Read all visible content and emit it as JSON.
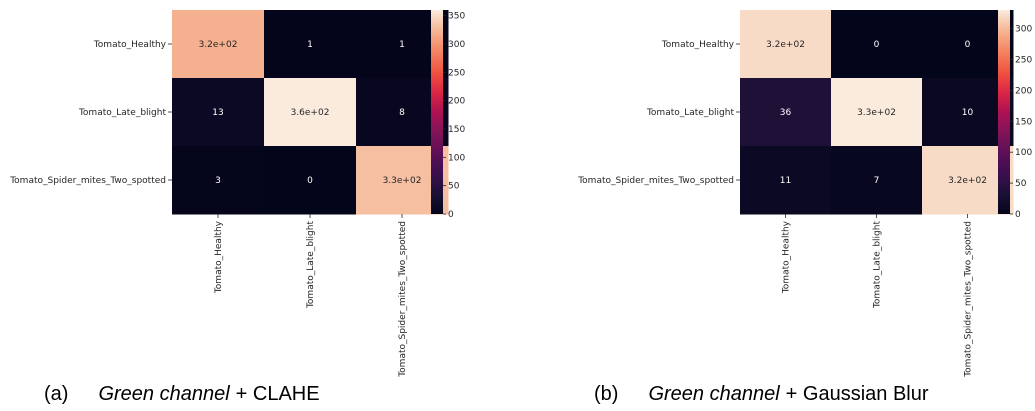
{
  "chart_data": [
    {
      "type": "heatmap",
      "caption": {
        "prefix": "(a)",
        "italic": "Green channel",
        "suffix": "+ CLAHE"
      },
      "x_labels": [
        "Tomato_Healthy",
        "Tomato_Late_blight",
        "Tomato_Spider_mites_Two_spotted"
      ],
      "y_labels": [
        "Tomato_Healthy",
        "Tomato_Late_blight",
        "Tomato_Spider_mites_Two_spotted"
      ],
      "values": [
        [
          320,
          1,
          1
        ],
        [
          13,
          360,
          8
        ],
        [
          3,
          0,
          330
        ]
      ],
      "annotations": [
        [
          "3.2e+02",
          "1",
          "1"
        ],
        [
          "13",
          "3.6e+02",
          "8"
        ],
        [
          "3",
          "0",
          "3.3e+02"
        ]
      ],
      "colorbar": {
        "min": 0,
        "max": 360,
        "ticks": [
          0,
          50,
          100,
          150,
          200,
          250,
          300,
          350
        ]
      }
    },
    {
      "type": "heatmap",
      "caption": {
        "prefix": "(b)",
        "italic": "Green channel",
        "suffix": "+ Gaussian Blur"
      },
      "x_labels": [
        "Tomato_Healthy",
        "Tomato_Late_blight",
        "Tomato_Spider_mites_Two_spotted"
      ],
      "y_labels": [
        "Tomato_Healthy",
        "Tomato_Late_blight",
        "Tomato_Spider_mites_Two_spotted"
      ],
      "values": [
        [
          320,
          0,
          0
        ],
        [
          36,
          330,
          10
        ],
        [
          11,
          7,
          320
        ]
      ],
      "annotations": [
        [
          "3.2e+02",
          "0",
          "0"
        ],
        [
          "36",
          "3.3e+02",
          "10"
        ],
        [
          "11",
          "7",
          "3.2e+02"
        ]
      ],
      "colorbar": {
        "min": 0,
        "max": 330,
        "ticks": [
          0,
          50,
          100,
          150,
          200,
          250,
          300
        ]
      }
    }
  ]
}
